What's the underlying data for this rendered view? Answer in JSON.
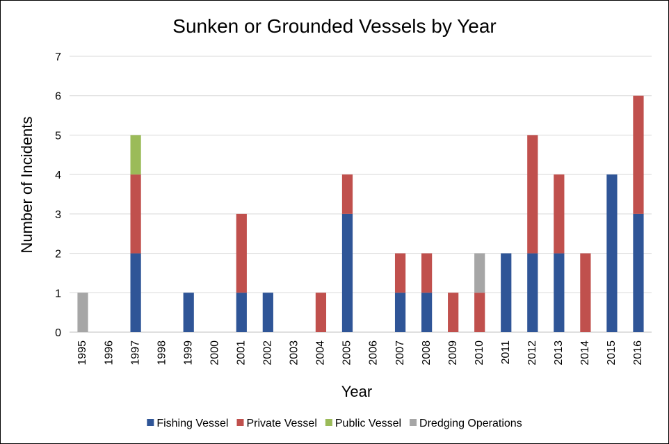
{
  "chart_data": {
    "type": "bar",
    "stacked": true,
    "title": "Sunken or Grounded Vessels by Year",
    "xlabel": "Year",
    "ylabel": "Number of Incidents",
    "ylim": [
      0,
      7
    ],
    "yticks": [
      "0",
      "1",
      "2",
      "3",
      "4",
      "5",
      "6",
      "7"
    ],
    "grid": true,
    "legend_position": "bottom",
    "categories": [
      "1995",
      "1996",
      "1997",
      "1998",
      "1999",
      "2000",
      "2001",
      "2002",
      "2003",
      "2004",
      "2005",
      "2006",
      "2007",
      "2008",
      "2009",
      "2010",
      "2011",
      "2012",
      "2013",
      "2014",
      "2015",
      "2016"
    ],
    "series": [
      {
        "name": "Fishing Vessel",
        "color": "#2F5597",
        "values": [
          0,
          0,
          2,
          0,
          1,
          0,
          1,
          1,
          0,
          0,
          3,
          0,
          1,
          1,
          0,
          0,
          2,
          2,
          2,
          0,
          4,
          3
        ]
      },
      {
        "name": "Private Vessel",
        "color": "#C0504D",
        "values": [
          0,
          0,
          2,
          0,
          0,
          0,
          2,
          0,
          0,
          1,
          1,
          0,
          1,
          1,
          1,
          1,
          0,
          3,
          2,
          2,
          0,
          3
        ]
      },
      {
        "name": "Public Vessel",
        "color": "#9BBB59",
        "values": [
          0,
          0,
          1,
          0,
          0,
          0,
          0,
          0,
          0,
          0,
          0,
          0,
          0,
          0,
          0,
          0,
          0,
          0,
          0,
          0,
          0,
          0
        ]
      },
      {
        "name": "Dredging Operations",
        "color": "#A6A6A6",
        "values": [
          1,
          0,
          0,
          0,
          0,
          0,
          0,
          0,
          0,
          0,
          0,
          0,
          0,
          0,
          0,
          1,
          0,
          0,
          0,
          0,
          0,
          0
        ]
      }
    ]
  }
}
